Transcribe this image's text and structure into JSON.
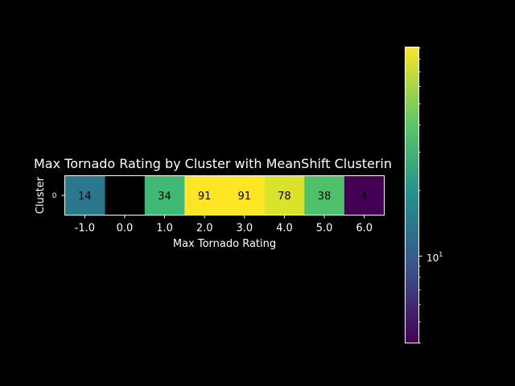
{
  "chart_data": {
    "type": "heatmap",
    "title": "Max Tornado Rating by Cluster with MeanShift Clusterin",
    "xlabel": "Max Tornado Rating",
    "ylabel": "Cluster",
    "x_ticks": [
      "-1.0",
      "0.0",
      "1.0",
      "2.0",
      "3.0",
      "4.0",
      "5.0",
      "6.0"
    ],
    "y_ticks": [
      "0"
    ],
    "values": [
      [
        14,
        null,
        34,
        91,
        91,
        78,
        38,
        4
      ]
    ],
    "cell_labels": [
      "14",
      "",
      "34",
      "91",
      "91",
      "78",
      "38",
      "4"
    ],
    "colorbar": {
      "scale": "log",
      "range": [
        4,
        91
      ],
      "colormap": "viridis",
      "tick_label": "10",
      "tick_label_exponent": "1"
    },
    "background": "#000000",
    "grid": false
  }
}
